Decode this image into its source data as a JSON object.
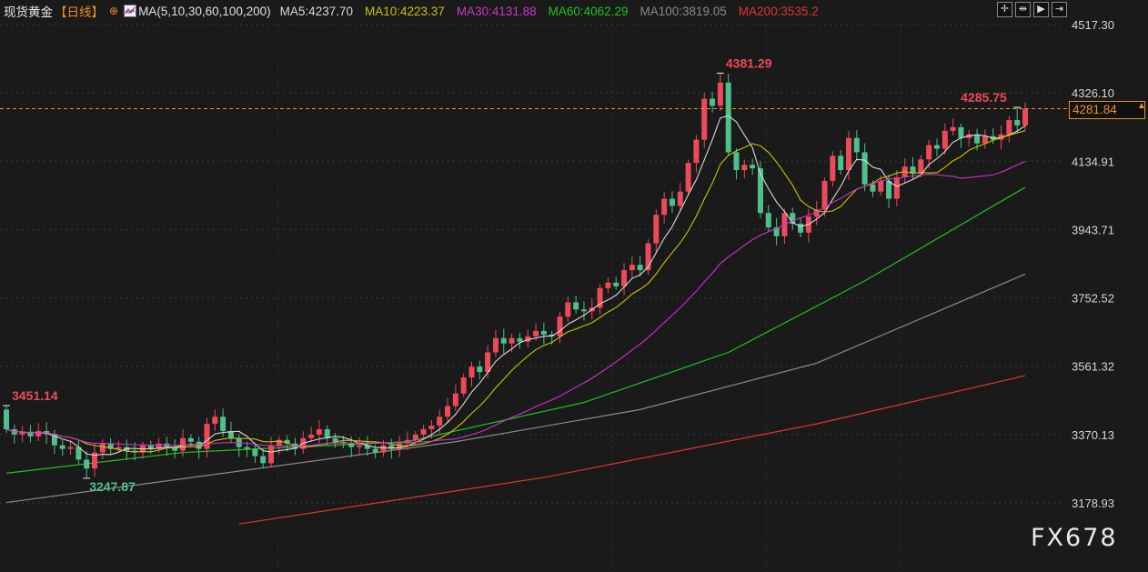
{
  "header": {
    "instrument": "现货黄金",
    "period": "【日线】",
    "add_icon": "circle-plus-icon",
    "ma_icon": "ma-chart-icon",
    "ma_params": "MA(5,10,30,60,100,200)",
    "ma_values": [
      {
        "label": "MA5:4237.70",
        "color": "#d8d8d8"
      },
      {
        "label": "MA10:4223.37",
        "color": "#c8c400"
      },
      {
        "label": "MA30:4131.88",
        "color": "#cc33cc"
      },
      {
        "label": "MA60:4062.29",
        "color": "#22c022"
      },
      {
        "label": "MA100:3819.05",
        "color": "#8a8a8a"
      },
      {
        "label": "MA200:3535.2",
        "color": "#e03535"
      }
    ]
  },
  "toolbar": {
    "buttons": [
      {
        "name": "crosshair-icon",
        "glyph": "✛"
      },
      {
        "name": "zoom-range-icon",
        "glyph": "⇹"
      },
      {
        "name": "play-icon",
        "glyph": "▶"
      },
      {
        "name": "goto-end-icon",
        "glyph": "⇥"
      }
    ]
  },
  "watermark": "FX678",
  "current_price": "4281.84",
  "colors": {
    "up": "#ec4a5a",
    "down": "#4fc08c",
    "background": "#1a1a1a",
    "price_line": "#e8902a"
  },
  "chart_data": {
    "type": "candlestick",
    "y_ticks": [
      "4517.30",
      "4326.10",
      "4134.91",
      "3943.71",
      "3752.52",
      "3561.32",
      "3370.13",
      "3178.93"
    ],
    "ylim": [
      3122,
      4582
    ],
    "grid": true,
    "first_open": 3440,
    "closes": [
      3385,
      3370,
      3378,
      3365,
      3380,
      3372,
      3340,
      3330,
      3335,
      3300,
      3275,
      3320,
      3345,
      3330,
      3335,
      3325,
      3320,
      3340,
      3330,
      3345,
      3335,
      3325,
      3360,
      3350,
      3330,
      3400,
      3420,
      3380,
      3360,
      3335,
      3330,
      3310,
      3290,
      3340,
      3355,
      3345,
      3330,
      3360,
      3370,
      3385,
      3360,
      3350,
      3345,
      3335,
      3340,
      3330,
      3320,
      3340,
      3330,
      3345,
      3355,
      3370,
      3385,
      3395,
      3420,
      3450,
      3485,
      3530,
      3560,
      3545,
      3600,
      3640,
      3625,
      3640,
      3630,
      3645,
      3660,
      3650,
      3645,
      3700,
      3740,
      3720,
      3715,
      3725,
      3780,
      3795,
      3785,
      3830,
      3845,
      3830,
      3905,
      3985,
      4030,
      4010,
      4050,
      4130,
      4195,
      4310,
      4290,
      4355,
      4160,
      4110,
      4125,
      4115,
      3990,
      3950,
      3925,
      3990,
      3960,
      3935,
      3980,
      4000,
      4080,
      4150,
      4110,
      4200,
      4160,
      4070,
      4050,
      4080,
      4030,
      4090,
      4120,
      4100,
      4140,
      4180,
      4170,
      4220,
      4230,
      4200,
      4210,
      4185,
      4205,
      4195,
      4210,
      4250,
      4235,
      4282
    ],
    "annotations": [
      {
        "label": "3451.14",
        "index": 0,
        "price": 3451.14,
        "kind": "high",
        "color": "#ec4a5a"
      },
      {
        "label": "3247.87",
        "index": 10,
        "price": 3247.87,
        "kind": "low",
        "color": "#4fc08c"
      },
      {
        "label": "4381.29",
        "index": 89,
        "price": 4381.29,
        "kind": "high",
        "color": "#ec4a5a"
      },
      {
        "label": "4285.75",
        "index": 126,
        "price": 4285.75,
        "kind": "high",
        "color": "#ec4a5a"
      }
    ],
    "computed_ma": [
      {
        "period": 5,
        "color": "#d8d8d8"
      },
      {
        "period": 10,
        "color": "#c8c400"
      },
      {
        "period": 30,
        "color": "#cc33cc"
      }
    ],
    "long_ma": [
      {
        "period": 60,
        "color": "#22c022",
        "points": [
          [
            0,
            3262
          ],
          [
            22,
            3320
          ],
          [
            50,
            3350
          ],
          [
            72,
            3460
          ],
          [
            90,
            3600
          ],
          [
            107,
            3800
          ],
          [
            127,
            4062
          ]
        ]
      },
      {
        "period": 100,
        "color": "#8a8a8a",
        "points": [
          [
            0,
            3180
          ],
          [
            33,
            3280
          ],
          [
            56,
            3350
          ],
          [
            79,
            3440
          ],
          [
            101,
            3570
          ],
          [
            127,
            3819
          ]
        ]
      },
      {
        "period": 200,
        "color": "#e03535",
        "points": [
          [
            29,
            3120
          ],
          [
            67,
            3250
          ],
          [
            101,
            3400
          ],
          [
            127,
            3535
          ]
        ]
      }
    ]
  }
}
